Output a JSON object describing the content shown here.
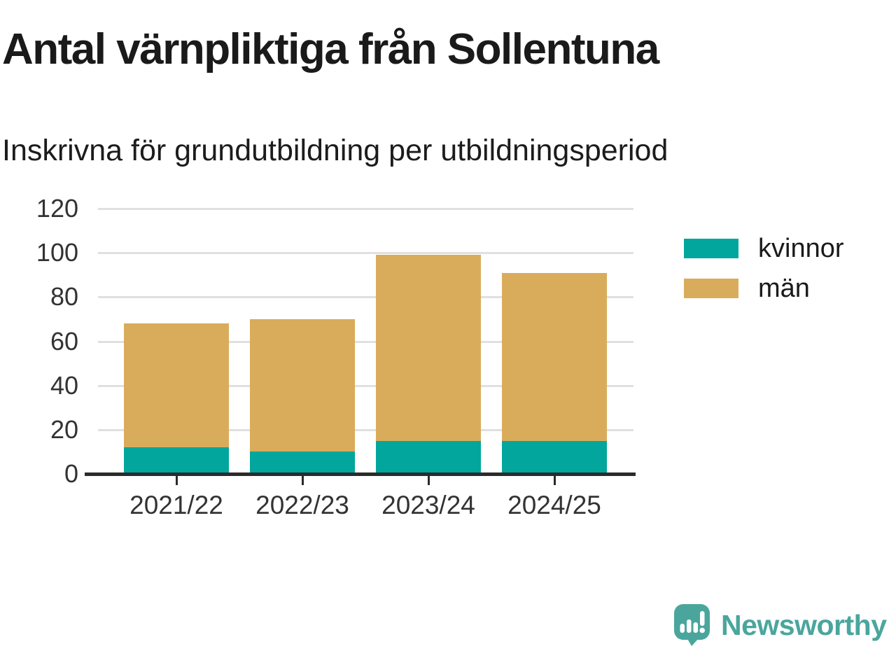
{
  "page": {
    "title": "Antal värnpliktiga från Sollentuna",
    "subtitle": "Inskrivna för grundutbildning per utbildningsperiod"
  },
  "chart_data": {
    "type": "bar",
    "stacked": true,
    "title": "Antal värnpliktiga från Sollentuna",
    "subtitle": "Inskrivna för grundutbildning per utbildningsperiod",
    "categories": [
      "2021/22",
      "2022/23",
      "2023/24",
      "2024/25"
    ],
    "series": [
      {
        "name": "kvinnor",
        "color": "#03a69c",
        "values": [
          12,
          10,
          15,
          15
        ]
      },
      {
        "name": "män",
        "color": "#d9ac5c",
        "values": [
          56,
          60,
          84,
          76
        ]
      }
    ],
    "stack_totals": [
      68,
      70,
      99,
      91
    ],
    "xlabel": "",
    "ylabel": "",
    "ylim": [
      0,
      120
    ],
    "yticks": [
      0,
      20,
      40,
      60,
      80,
      100,
      120
    ],
    "grid": "horizontal",
    "legend_position": "right"
  },
  "colors": {
    "background": "#ffffff",
    "title_text": "#1a1a1a",
    "tick_text": "#333333",
    "gridline": "#e0e0e0",
    "axis": "#2b2b2b",
    "series_kvinnor": "#03a69c",
    "series_man": "#d9ac5c",
    "brand_teal": "#4aa69d"
  },
  "branding": {
    "logo_text": "Newsworthy",
    "logo_icon": "bar-chart-speech-bubble"
  }
}
